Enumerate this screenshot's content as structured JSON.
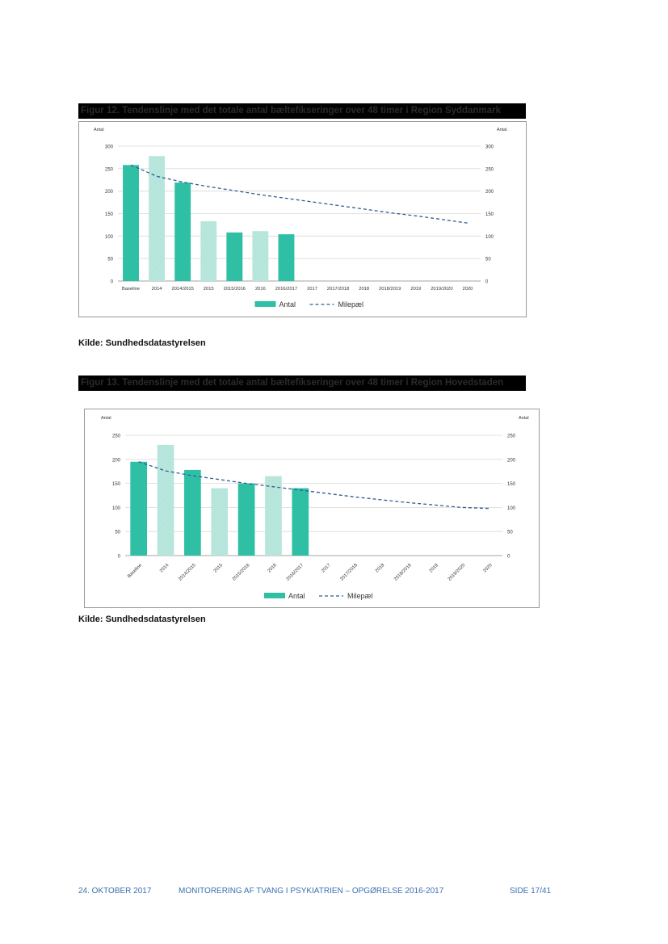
{
  "figures": [
    {
      "title": "Figur 12. Tendenslinje med det totale antal bæltefikseringer over 48 timer i Region Syddanmark",
      "source": "Kilde: Sundhedsdatastyrelsen"
    },
    {
      "title": "Figur 13. Tendenslinje med det totale antal bæltefikseringer over 48 timer i Region Hovedstaden",
      "source": "Kilde: Sundhedsdatastyrelsen"
    }
  ],
  "footer": {
    "date": "24. OKTOBER 2017",
    "doc_title": "MONITORERING AF TVANG I PSYKIATRIEN – OPGØRELSE 2016-2017",
    "page": "SIDE 17/41"
  },
  "colors": {
    "solid": "#2ebfa5",
    "hatched": "#bfe9e0",
    "milestone": "#2f5f8f"
  },
  "chart_data": [
    {
      "type": "bar",
      "categories": [
        "Baseline",
        "2014",
        "2014/2015",
        "2015",
        "2015/2016",
        "2016",
        "2016/2017",
        "2017",
        "2017/2018",
        "2018",
        "2018/2019",
        "2019",
        "2019/2020",
        "2020"
      ],
      "series": [
        {
          "name": "Antal",
          "values": [
            258,
            278,
            219,
            133,
            108,
            111,
            104,
            null,
            null,
            null,
            null,
            null,
            null,
            null
          ],
          "pattern": [
            "solid",
            "hatched",
            "solid",
            "hatched",
            "solid",
            "hatched",
            "solid",
            null,
            null,
            null,
            null,
            null,
            null,
            null
          ]
        },
        {
          "name": "Milepæl",
          "style": "dashed-line",
          "values": [
            258,
            233,
            220,
            210,
            201,
            192,
            184,
            176,
            168,
            160,
            152,
            145,
            137,
            129
          ]
        }
      ],
      "ylabel": "Antal",
      "y2label": "Antal",
      "ylim": [
        0,
        300
      ],
      "yticks": [
        0,
        50,
        100,
        150,
        200,
        250,
        300
      ],
      "grid": true,
      "legend": "bottom",
      "xtick_rotation": 0
    },
    {
      "type": "bar",
      "categories": [
        "Baseline",
        "2014",
        "2014/2015",
        "2015",
        "2015/2016",
        "2016",
        "2016/2017",
        "2017",
        "2017/2018",
        "2018",
        "2018/2019",
        "2019",
        "2019/2020",
        "2020"
      ],
      "series": [
        {
          "name": "Antal",
          "values": [
            195,
            230,
            178,
            140,
            150,
            165,
            140,
            null,
            null,
            null,
            null,
            null,
            null,
            null
          ],
          "pattern": [
            "solid",
            "hatched",
            "solid",
            "hatched",
            "solid",
            "hatched",
            "solid",
            null,
            null,
            null,
            null,
            null,
            null,
            null
          ]
        },
        {
          "name": "Milepæl",
          "style": "dashed-line",
          "values": [
            195,
            176,
            166,
            158,
            150,
            143,
            136,
            129,
            122,
            116,
            110,
            105,
            100,
            98
          ]
        }
      ],
      "ylabel": "Antal",
      "y2label": "Antal",
      "ylim": [
        0,
        250
      ],
      "yticks": [
        0,
        50,
        100,
        150,
        200,
        250
      ],
      "grid": true,
      "legend": "bottom",
      "xtick_rotation": -45
    }
  ]
}
